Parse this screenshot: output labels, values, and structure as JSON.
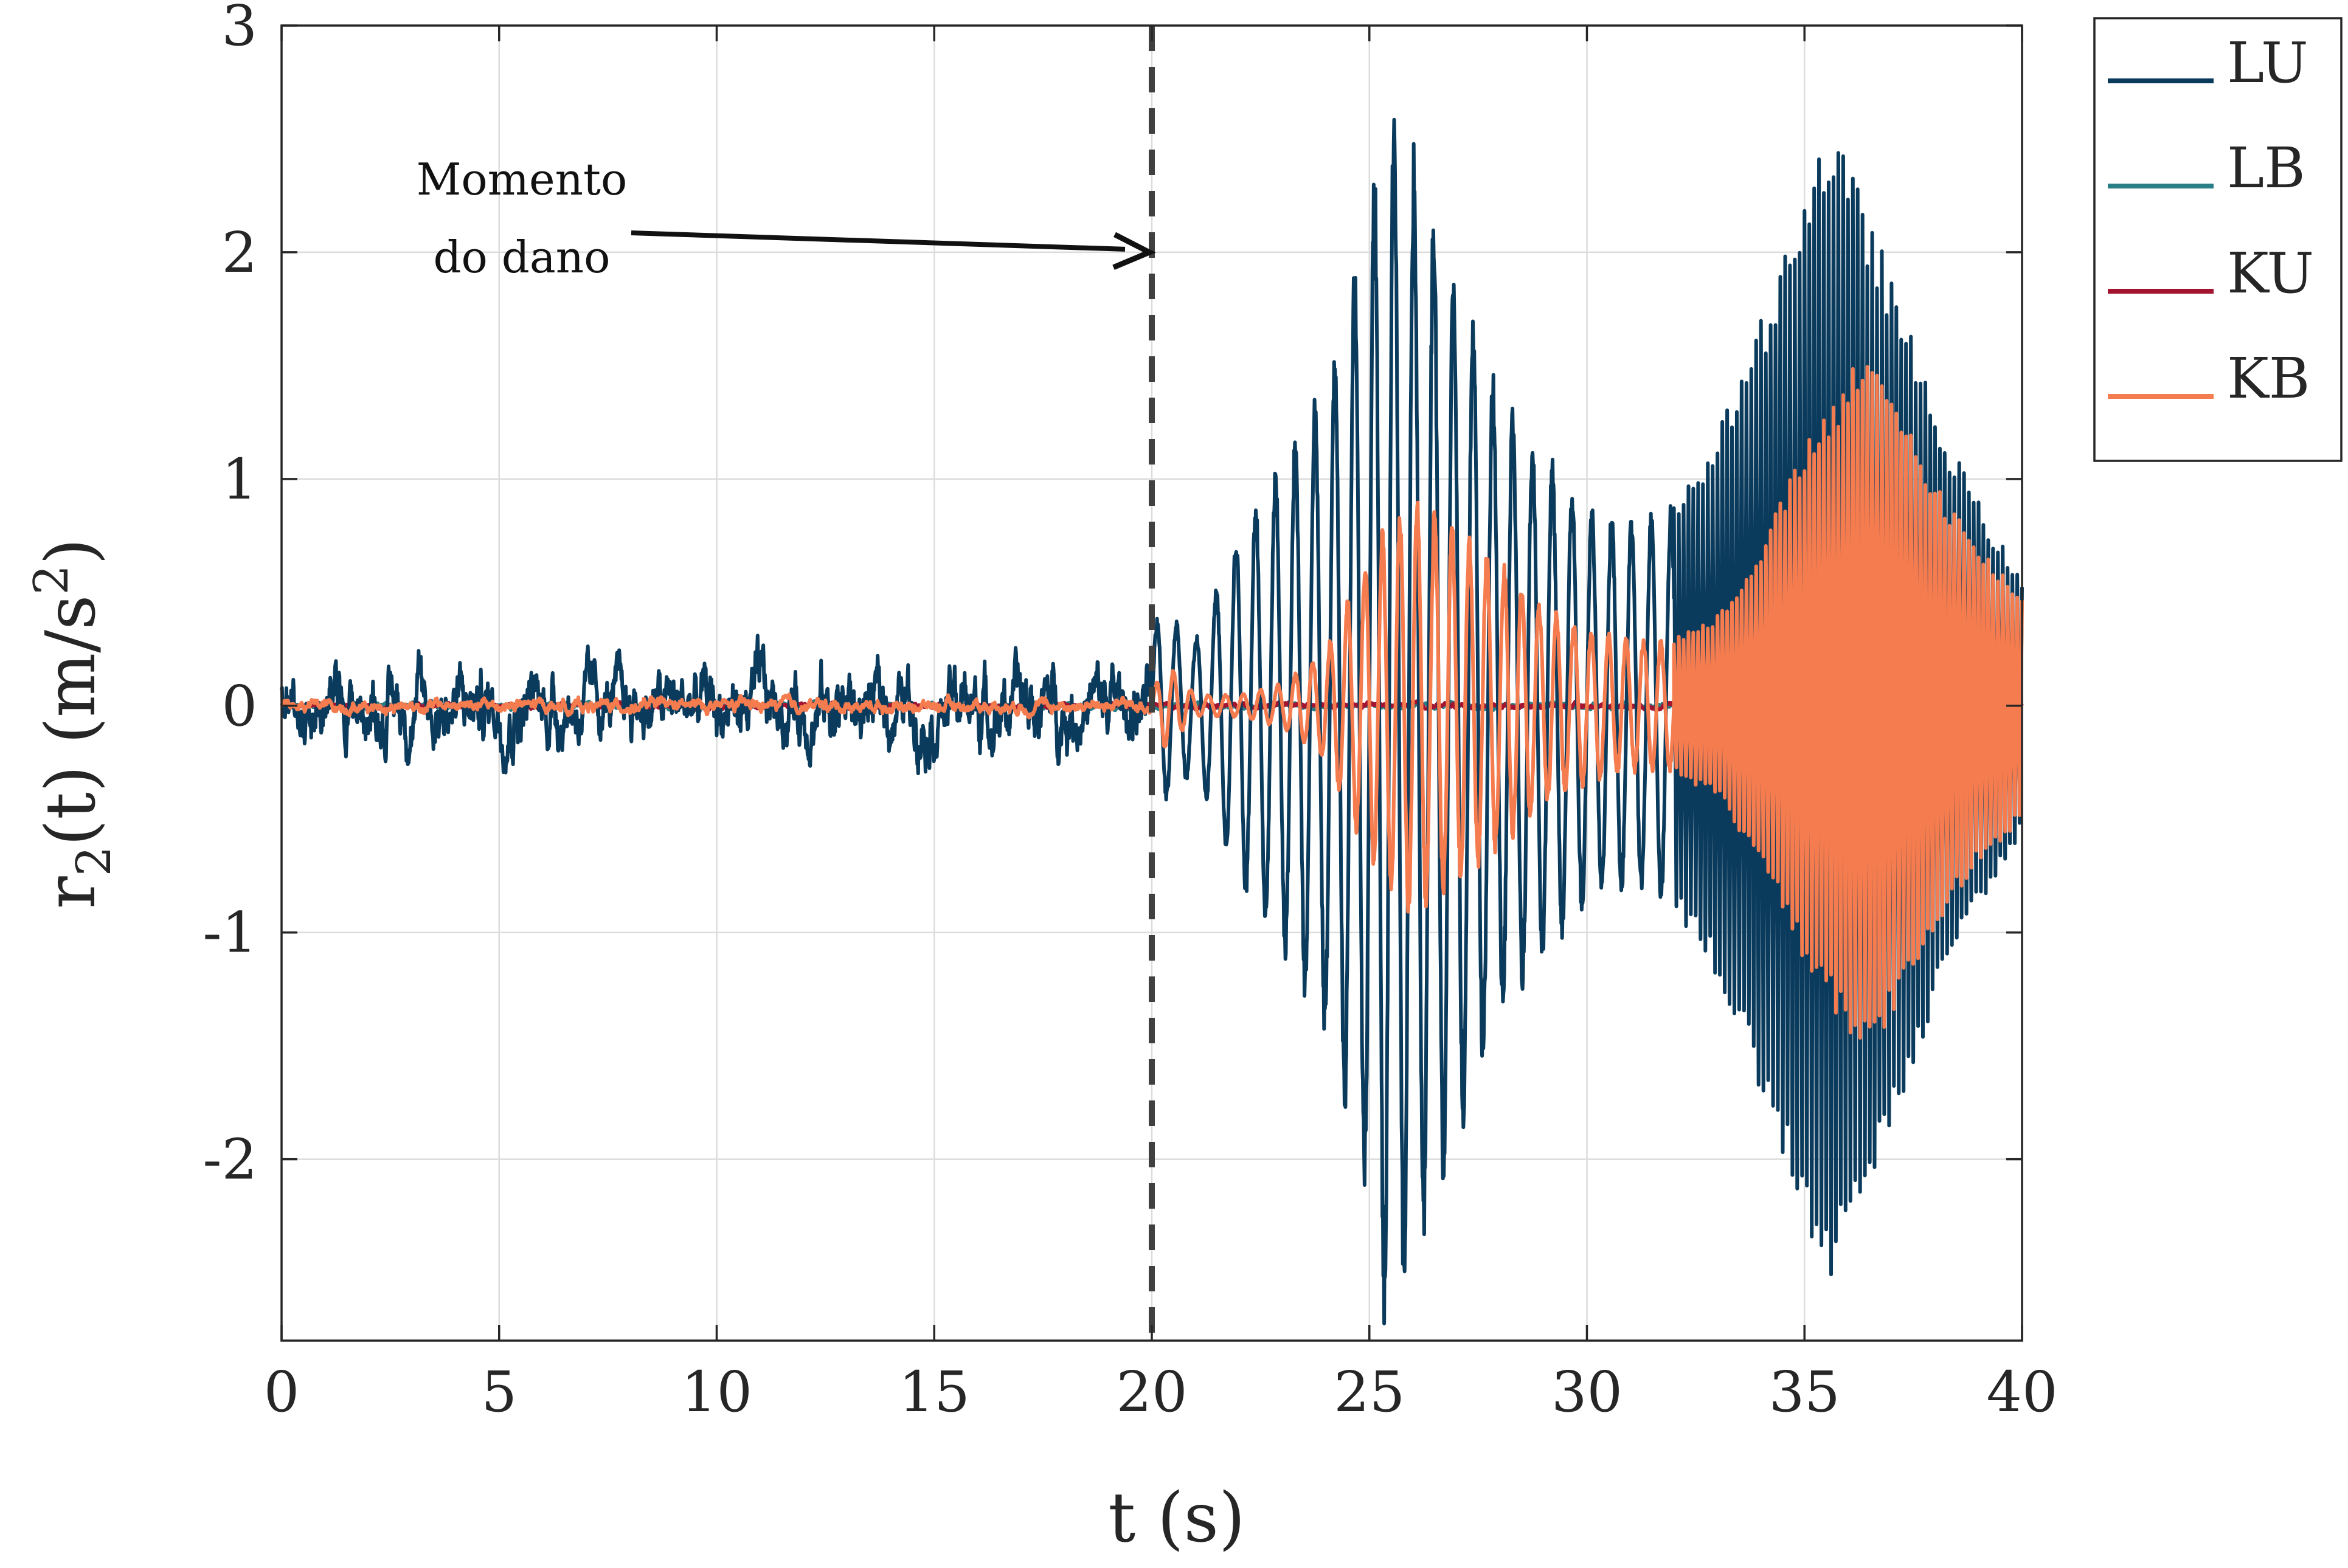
{
  "chart_data": {
    "type": "line",
    "title": "",
    "xlabel": "t (s)",
    "ylabel_main": "r",
    "ylabel_sub": "2",
    "ylabel_rest": "(t) (m/s",
    "ylabel_sup": "2",
    "ylabel_end": ")",
    "xlim": [
      0,
      40
    ],
    "ylim": [
      -2.8,
      3.0
    ],
    "xticks": [
      0,
      5,
      10,
      15,
      20,
      25,
      30,
      35,
      40
    ],
    "xtick_labels": [
      "0",
      "5",
      "10",
      "15",
      "20",
      "25",
      "30",
      "35",
      "40"
    ],
    "yticks": [
      -2,
      -1,
      0,
      1,
      2,
      3
    ],
    "ytick_labels": [
      "-2",
      "-1",
      "0",
      "1",
      "2",
      "3"
    ],
    "grid": true,
    "legend_position": "outside-top-right",
    "damage_time": 20,
    "annotation": {
      "line1": "Momento",
      "line2": "do dano",
      "text_x": 5.5,
      "text_y": 2.0,
      "arrow_to_x": 20,
      "arrow_to_y": 2.0
    },
    "series": [
      {
        "name": "LU",
        "color": "#0b3b5c",
        "envelope": {
          "x": [
            0,
            2,
            4,
            6,
            8,
            10,
            12,
            14,
            16,
            18,
            20,
            20.2,
            21,
            22,
            23,
            24,
            25,
            25.4,
            26,
            27,
            28,
            29,
            30,
            31,
            32,
            33,
            34,
            35,
            35.5,
            36,
            37,
            38,
            39,
            40
          ],
          "amp": [
            0.25,
            0.3,
            0.3,
            0.3,
            0.25,
            0.3,
            0.3,
            0.3,
            0.3,
            0.3,
            0.3,
            0.45,
            0.3,
            0.8,
            1.1,
            1.5,
            2.3,
            2.85,
            2.5,
            2.0,
            1.4,
            1.15,
            0.9,
            0.85,
            0.9,
            1.2,
            1.7,
            2.3,
            2.55,
            2.4,
            1.9,
            1.3,
            0.9,
            0.55
          ]
        },
        "segments": [
          {
            "x_start": 0,
            "x_end": 20,
            "kind": "noise"
          },
          {
            "x_start": 20,
            "x_end": 32,
            "kind": "oscillation",
            "frequency": 2.2
          },
          {
            "x_start": 32,
            "x_end": 40,
            "kind": "dense-oscillation",
            "frequency": 9.0
          }
        ]
      },
      {
        "name": "LB",
        "color": "#2a7f86",
        "envelope": {
          "x": [
            0,
            20,
            40
          ],
          "amp": [
            0.02,
            0.02,
            0.02
          ]
        },
        "segments": [
          {
            "x_start": 0,
            "x_end": 40,
            "kind": "noise"
          }
        ]
      },
      {
        "name": "KU",
        "color": "#a2142f",
        "envelope": {
          "x": [
            0,
            20,
            40
          ],
          "amp": [
            0.02,
            0.02,
            0.02
          ]
        },
        "segments": [
          {
            "x_start": 0,
            "x_end": 40,
            "kind": "noise"
          }
        ]
      },
      {
        "name": "KB",
        "color": "#f47c4f",
        "envelope": {
          "x": [
            0,
            5,
            10,
            15,
            20,
            20.3,
            21,
            22,
            23,
            24,
            25,
            26,
            27,
            28,
            29,
            30,
            31,
            32,
            33,
            34,
            35,
            36,
            36.3,
            37,
            38,
            39,
            40
          ],
          "amp": [
            0.05,
            0.05,
            0.05,
            0.05,
            0.05,
            0.2,
            0.05,
            0.05,
            0.1,
            0.25,
            0.7,
            0.95,
            0.8,
            0.65,
            0.45,
            0.35,
            0.3,
            0.3,
            0.4,
            0.7,
            1.15,
            1.45,
            1.55,
            1.4,
            1.0,
            0.7,
            0.5
          ]
        },
        "segments": [
          {
            "x_start": 0,
            "x_end": 20,
            "kind": "noise"
          },
          {
            "x_start": 20,
            "x_end": 32,
            "kind": "oscillation",
            "frequency": 2.5
          },
          {
            "x_start": 32,
            "x_end": 40,
            "kind": "dense-oscillation",
            "frequency": 9.0
          }
        ]
      }
    ]
  }
}
